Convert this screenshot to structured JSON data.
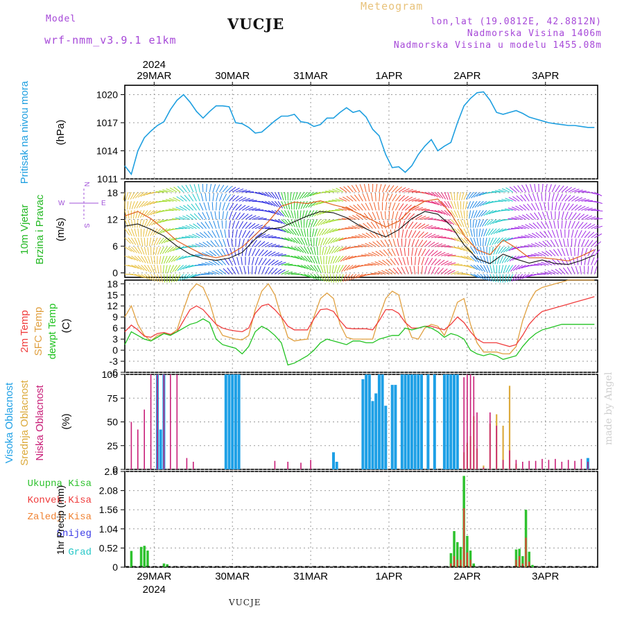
{
  "header": {
    "model_label": "Model",
    "model_name": "wrf-nmm_v3.9.1 e1km",
    "station": "VUCJE",
    "meteogram": "Meteogram",
    "coords": "lon,lat (19.0812E, 42.8812N)",
    "altitude": "Nadmorska Visina 1406m",
    "model_altitude": "Nadmorska Visina u modelu 1455.08m"
  },
  "footer": {
    "station": "VUCJE",
    "watermark": "made by Angel"
  },
  "colors": {
    "pressure": "#1e9fe0",
    "temp2m": "#f03c3c",
    "sfc": "#e0a040",
    "dewpt": "#22c322",
    "high_cloud": "#1ea0e6",
    "mid_cloud": "#dcaa3c",
    "low_cloud": "#c81e78",
    "total_precip": "#2ec22e",
    "conv_precip": "#ef3b3b",
    "freezing": "#f08232",
    "snow": "#3c3ce6",
    "hail": "#28c8c8"
  },
  "time_axis": {
    "year": "2024",
    "day_labels": [
      "29MAR",
      "30MAR",
      "31MAR",
      "1APR",
      "2APR",
      "3APR"
    ]
  },
  "chart_data": [
    {
      "type": "line",
      "panel": "pressure",
      "ylabel_main": "Pritisak na nivou mora",
      "unit": "(hPa)",
      "ylim": [
        1011,
        1021
      ],
      "yticks": [
        "1011",
        "1014",
        "1017",
        "1020"
      ],
      "x_hours": [
        0,
        2,
        4,
        6,
        8,
        10,
        12,
        14,
        16,
        18,
        20,
        22,
        24,
        26,
        28,
        30,
        32,
        34,
        36,
        38,
        40,
        42,
        44,
        46,
        48,
        50,
        52,
        54,
        56,
        58,
        60,
        62,
        64,
        66,
        68,
        70,
        72,
        74,
        76,
        78,
        80,
        82,
        84,
        86,
        88,
        90,
        92,
        94,
        96,
        98,
        100,
        102,
        104,
        106,
        108,
        110,
        112,
        114,
        116,
        118,
        120,
        122,
        124,
        126,
        128,
        130,
        132,
        134,
        136,
        138,
        140,
        142,
        144
      ],
      "series": [
        {
          "name": "Pritisak na nivou mora",
          "values": [
            1012.4,
            1011.5,
            1014.0,
            1015.4,
            1016.1,
            1016.7,
            1017.1,
            1018.4,
            1019.4,
            1020.0,
            1019.2,
            1018.2,
            1017.5,
            1018.2,
            1018.8,
            1018.8,
            1018.7,
            1017.0,
            1016.9,
            1016.5,
            1015.9,
            1016.0,
            1016.6,
            1017.2,
            1017.7,
            1017.7,
            1017.9,
            1017.1,
            1017.0,
            1016.6,
            1016.8,
            1017.5,
            1017.5,
            1018.1,
            1018.6,
            1018.1,
            1018.3,
            1017.6,
            1016.3,
            1015.6,
            1013.6,
            1012.2,
            1012.3,
            1011.7,
            1012.4,
            1013.6,
            1014.5,
            1015.2,
            1014.0,
            1014.5,
            1014.9,
            1017.0,
            1018.8,
            1019.6,
            1020.2,
            1020.3,
            1019.4,
            1018.1,
            1017.9,
            1018.1,
            1018.3,
            1018.0,
            1017.6,
            1017.4,
            1017.2,
            1017.0,
            1016.9,
            1016.8,
            1016.7,
            1016.7,
            1016.6,
            1016.5,
            1016.5
          ]
        }
      ]
    },
    {
      "type": "line",
      "panel": "wind",
      "ylabel_main": "10m Vjetar",
      "ylabel_sub": "Brzina i Pravac",
      "unit": "(m/s)",
      "ylim": [
        -1,
        20.5
      ],
      "yticks": [
        "0",
        "6",
        "12",
        "18"
      ],
      "compass": {
        "north": "N",
        "south": "S",
        "west": "W",
        "east": "E"
      },
      "x_hours": [
        0,
        4,
        8,
        12,
        16,
        20,
        24,
        28,
        32,
        36,
        40,
        44,
        48,
        52,
        56,
        60,
        64,
        68,
        72,
        76,
        80,
        84,
        88,
        92,
        96,
        100,
        104,
        108,
        112,
        116,
        120,
        124,
        128,
        132,
        136,
        140,
        144
      ],
      "series": [
        {
          "name": "speed",
          "values": [
            10.5,
            11,
            9.8,
            8.3,
            6,
            4.2,
            3.2,
            2.8,
            3.3,
            4.6,
            7.6,
            9.8,
            10.2,
            11.5,
            12.8,
            13.8,
            13.5,
            12.4,
            10.6,
            9.2,
            8.1,
            9.7,
            12.2,
            13.8,
            13.2,
            10.6,
            6.3,
            3.2,
            2.1,
            4.2,
            3.1,
            2.2,
            2.9,
            2.1,
            1.9,
            2.8,
            4.0
          ]
        },
        {
          "name": "gust",
          "values": [
            12.8,
            13.8,
            12.2,
            9.8,
            7.2,
            5.6,
            4.1,
            3.4,
            4.1,
            5.8,
            8.5,
            11.5,
            15.0,
            15.9,
            15.6,
            16.2,
            15.3,
            14.6,
            13.2,
            11.8,
            10.3,
            11.6,
            14.4,
            16.1,
            16.6,
            13.4,
            8.4,
            5.2,
            4.1,
            7.4,
            5.6,
            3.4,
            3.4,
            3.1,
            2.7,
            3.8,
            5.2
          ]
        }
      ]
    },
    {
      "type": "line",
      "panel": "temperature",
      "ylabel_main": "2m Temp",
      "ylabel_sub": "SFC Temp",
      "ylabel_third": "dewpt Temp",
      "unit": "(C)",
      "ylim": [
        -6,
        19
      ],
      "yticks": [
        "-6",
        "-3",
        "0",
        "3",
        "6",
        "9",
        "12",
        "15",
        "18"
      ],
      "x_hours": [
        0,
        2,
        4,
        6,
        8,
        10,
        12,
        14,
        16,
        18,
        20,
        22,
        24,
        26,
        28,
        30,
        32,
        34,
        36,
        38,
        40,
        42,
        44,
        46,
        48,
        50,
        52,
        54,
        56,
        58,
        60,
        62,
        64,
        66,
        68,
        70,
        72,
        74,
        76,
        78,
        80,
        82,
        84,
        86,
        88,
        90,
        92,
        94,
        96,
        98,
        100,
        102,
        104,
        106,
        108,
        110,
        112,
        114,
        116,
        118,
        120,
        122,
        124,
        126,
        128,
        130,
        132,
        134,
        136,
        138,
        140,
        142,
        144
      ],
      "series": [
        {
          "name": "2m Temp",
          "values": [
            5,
            6.8,
            5.5,
            3.8,
            3.5,
            4.5,
            4.8,
            4.3,
            5,
            8,
            11,
            12,
            11,
            9,
            7,
            6,
            5.5,
            5.2,
            5,
            6,
            10,
            12,
            12.5,
            11,
            9,
            6.5,
            5.5,
            5.5,
            5.5,
            8.5,
            11,
            11.2,
            10.5,
            8,
            6,
            5.8,
            5.8,
            5.8,
            5.5,
            8,
            11,
            11,
            10,
            7.5,
            6,
            6,
            6.5,
            6.5,
            6,
            5.5,
            7,
            9,
            7.5,
            5,
            3,
            2,
            2,
            2,
            1.5,
            1,
            1.5,
            4,
            7,
            9,
            10.5,
            11,
            11.5,
            12,
            12.5,
            13,
            13.5,
            14,
            14.5
          ]
        },
        {
          "name": "SFC Temp",
          "values": [
            9,
            12,
            7,
            4,
            2.5,
            4,
            4.5,
            4.2,
            5.5,
            11,
            16,
            18,
            17,
            13,
            7,
            4,
            3.5,
            3,
            2.8,
            4,
            11,
            16,
            18,
            15,
            9,
            3.5,
            2.5,
            2.8,
            3,
            9,
            14,
            15.5,
            14,
            7,
            3.5,
            3,
            3,
            3,
            3,
            9,
            14,
            16,
            15,
            8,
            3.5,
            3,
            6,
            7,
            6.5,
            4,
            8,
            13,
            14,
            7,
            2,
            -0.5,
            -0.5,
            -0.5,
            -1,
            -1,
            1,
            8,
            13,
            16,
            17,
            17.5,
            18,
            18.5,
            19,
            19,
            19,
            19,
            19
          ]
        },
        {
          "name": "dewpt Temp",
          "values": [
            1.5,
            5,
            4,
            3,
            2.5,
            3.5,
            4.5,
            4,
            5,
            6,
            7,
            7.5,
            8.5,
            7.5,
            3,
            1.5,
            1,
            0.5,
            -1,
            1,
            5,
            6.5,
            5.5,
            4,
            2,
            -4,
            -3.5,
            -2.5,
            -1.5,
            0,
            2,
            3,
            2.5,
            2,
            1.5,
            2.5,
            2.5,
            2,
            2,
            3,
            3.5,
            4,
            4,
            6,
            5.5,
            6,
            6.5,
            6,
            5,
            3.5,
            4.5,
            4,
            3,
            0,
            -1,
            -1.5,
            -1,
            -1.5,
            -2.5,
            -2,
            -1.5,
            1,
            3,
            4.5,
            5.5,
            6,
            6.5,
            7,
            7,
            7,
            7,
            7,
            7
          ]
        }
      ]
    },
    {
      "type": "bar",
      "panel": "clouds",
      "ylabel_main": "Visoka Oblacnost",
      "ylabel_sub": "Srednja Oblacnost",
      "ylabel_third": "Niska Oblacnost",
      "unit": "(%)",
      "ylim": [
        0,
        100
      ],
      "yticks": [
        "0",
        "25",
        "50",
        "75",
        "100"
      ],
      "x_hours": [
        2,
        4,
        6,
        8,
        10,
        11,
        12,
        14,
        16,
        19,
        21,
        31,
        32,
        33,
        34,
        35,
        46,
        50,
        54,
        57,
        64,
        65,
        69,
        70,
        72,
        73,
        74,
        75,
        76,
        77,
        78,
        79,
        80,
        82,
        83,
        84,
        85,
        86,
        87,
        88,
        89,
        90,
        91,
        93,
        95,
        98,
        99,
        100,
        101,
        102,
        104,
        105,
        106,
        107,
        108,
        110,
        112,
        114,
        116,
        118,
        120,
        122,
        124,
        126,
        128,
        130,
        132,
        134,
        136,
        138,
        140,
        142,
        144
      ],
      "series": [
        {
          "name": "Visoka Oblacnost",
          "values": [
            0,
            0,
            0,
            0,
            100,
            42,
            100,
            0,
            0,
            0,
            0,
            100,
            100,
            100,
            100,
            100,
            0,
            0,
            0,
            0,
            18,
            8,
            0,
            0,
            0,
            95,
            100,
            100,
            72,
            80,
            100,
            100,
            67,
            89,
            89,
            0,
            100,
            100,
            100,
            100,
            100,
            100,
            100,
            100,
            100,
            100,
            100,
            100,
            100,
            100,
            0,
            0,
            0,
            0,
            0,
            0,
            0,
            0,
            0,
            0,
            0,
            0,
            0,
            0,
            0,
            0,
            0,
            0,
            0,
            0,
            0,
            12,
            0
          ]
        },
        {
          "name": "Srednja Oblacnost",
          "values": [
            0,
            0,
            0,
            0,
            0,
            0,
            0,
            0,
            0,
            0,
            0,
            0,
            0,
            0,
            0,
            0,
            0,
            0,
            0,
            0,
            0,
            0,
            0,
            0,
            0,
            0,
            0,
            0,
            0,
            0,
            0,
            0,
            0,
            0,
            0,
            0,
            0,
            0,
            0,
            0,
            0,
            0,
            0,
            0,
            0,
            0,
            0,
            0,
            0,
            0,
            18,
            28,
            35,
            56,
            22,
            4,
            48,
            58,
            46,
            88,
            6,
            0,
            0,
            0,
            0,
            0,
            0,
            0,
            0,
            0,
            0,
            0,
            0
          ]
        },
        {
          "name": "Niska Oblacnost",
          "values": [
            50,
            42,
            63,
            100,
            100,
            0,
            100,
            100,
            100,
            12,
            8,
            0,
            0,
            0,
            0,
            0,
            9,
            8,
            7,
            10,
            0,
            0,
            0,
            0,
            0,
            0,
            0,
            0,
            0,
            0,
            0,
            0,
            0,
            0,
            0,
            0,
            0,
            0,
            0,
            0,
            0,
            0,
            0,
            0,
            0,
            0,
            0,
            0,
            0,
            0,
            97,
            100,
            100,
            98,
            60,
            2,
            60,
            46,
            10,
            20,
            10,
            8,
            9,
            9,
            11,
            10,
            11,
            8,
            10,
            9,
            11,
            8,
            0
          ]
        }
      ]
    },
    {
      "type": "bar",
      "panel": "precipitation",
      "ylabel": "1hr Precip (mm)",
      "legend": [
        "Ukupna Kisa",
        "Konvek.Kisa",
        "Zaledj.Kisa",
        "Snijeg",
        "Grad"
      ],
      "ylim": [
        0,
        2.6
      ],
      "yticks": [
        "0",
        "0.52",
        "1.04",
        "1.56",
        "2.08",
        "2.6"
      ],
      "x_hours": [
        2,
        5,
        6,
        7,
        12,
        13,
        100,
        101,
        102,
        103,
        104,
        105,
        106,
        107,
        108,
        120,
        121,
        122,
        123,
        124,
        125
      ],
      "series": [
        {
          "name": "Ukupna Kisa",
          "values": [
            0.44,
            0.55,
            0.58,
            0.45,
            0.1,
            0.08,
            0.38,
            0.98,
            0.68,
            0.55,
            2.48,
            0.85,
            0.45,
            0.1,
            0.0,
            0.48,
            0.5,
            0.3,
            1.56,
            0.42,
            0.06
          ]
        },
        {
          "name": "Konvek.Kisa",
          "values": [
            0,
            0,
            0,
            0,
            0,
            0,
            0.1,
            0.3,
            0.2,
            0.2,
            1.6,
            0.4,
            0.2,
            0,
            0,
            0.2,
            0.3,
            0.1,
            0.8,
            0.15,
            0
          ]
        }
      ]
    }
  ]
}
